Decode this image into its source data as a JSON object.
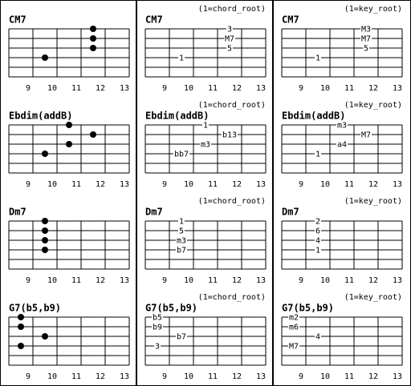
{
  "grid": [
    [
      {
        "title": "CM7",
        "frets": [
          "9",
          "10",
          "11",
          "12",
          "13"
        ]
      },
      {
        "title": "CM7",
        "note": "(1=chord_root)",
        "frets": [
          "9",
          "10",
          "11",
          "12",
          "13"
        ],
        "labels": [
          "3",
          "M7",
          "5",
          "1"
        ]
      },
      {
        "title": "CM7",
        "note": "(1=key_root)",
        "frets": [
          "9",
          "10",
          "11",
          "12",
          "13"
        ],
        "labels": [
          "M3",
          "M7",
          "5",
          "1"
        ]
      }
    ],
    [
      {
        "title": "Ebdim(addB)",
        "frets": [
          "9",
          "10",
          "11",
          "12",
          "13"
        ]
      },
      {
        "title": "Ebdim(addB)",
        "note": "(1=chord_root)",
        "frets": [
          "9",
          "10",
          "11",
          "12",
          "13"
        ],
        "labels": [
          "1",
          "b13",
          "m3",
          "bb7"
        ]
      },
      {
        "title": "Ebdim(addB)",
        "note": "(1=key_root)",
        "frets": [
          "9",
          "10",
          "11",
          "12",
          "13"
        ],
        "labels": [
          "m3",
          "M7",
          "a4",
          "1"
        ]
      }
    ],
    [
      {
        "title": "Dm7",
        "frets": [
          "9",
          "10",
          "11",
          "12",
          "13"
        ]
      },
      {
        "title": "Dm7",
        "note": "(1=chord_root)",
        "frets": [
          "9",
          "10",
          "11",
          "12",
          "13"
        ],
        "labels": [
          "1",
          "5",
          "m3",
          "b7"
        ]
      },
      {
        "title": "Dm7",
        "note": "(1=key_root)",
        "frets": [
          "9",
          "10",
          "11",
          "12",
          "13"
        ],
        "labels": [
          "2",
          "6",
          "4",
          "1"
        ]
      }
    ],
    [
      {
        "title": "G7(b5,b9)",
        "frets": [
          "9",
          "10",
          "11",
          "12",
          "13"
        ]
      },
      {
        "title": "G7(b5,b9)",
        "note": "(1=chord_root)",
        "frets": [
          "9",
          "10",
          "11",
          "12",
          "13"
        ],
        "labels": [
          "b5",
          "b9",
          "b7",
          "3"
        ]
      },
      {
        "title": "G7(b5,b9)",
        "note": "(1=key_root)",
        "frets": [
          "9",
          "10",
          "11",
          "12",
          "13"
        ],
        "labels": [
          "m2",
          "m6",
          "4",
          "M7"
        ]
      }
    ]
  ]
}
